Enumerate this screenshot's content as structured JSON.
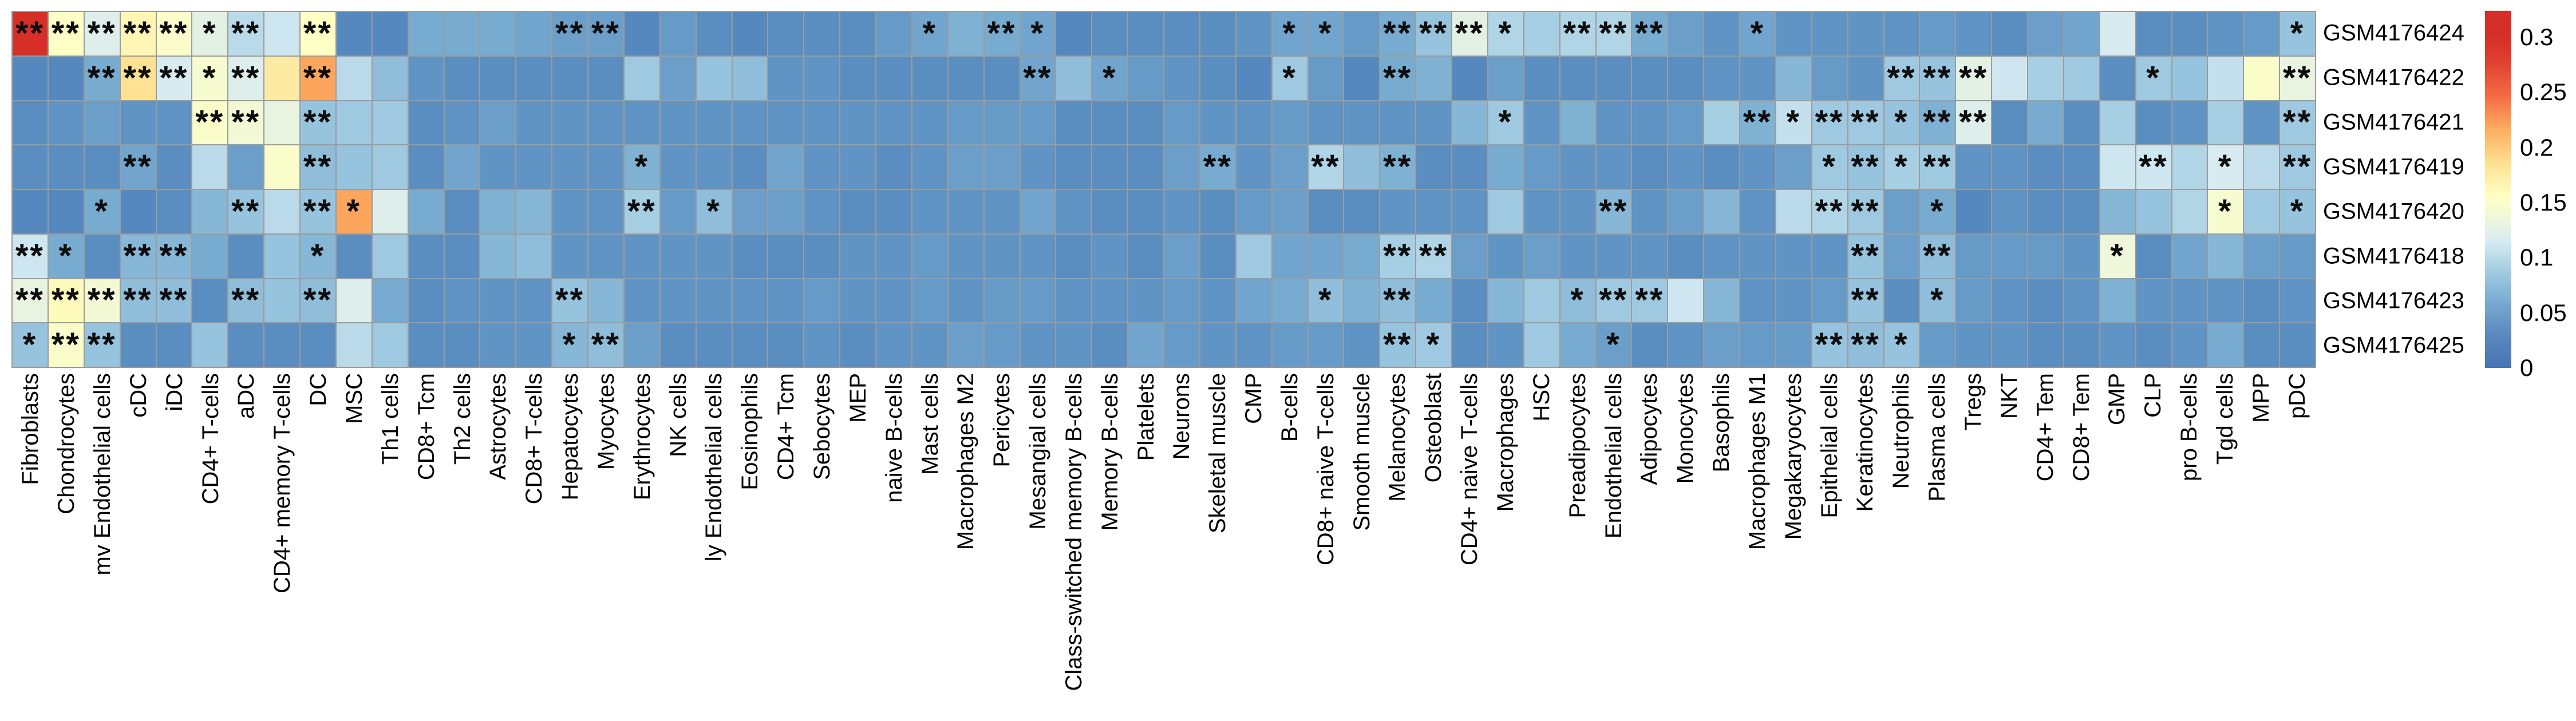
{
  "chart_data": {
    "type": "heatmap",
    "title": "",
    "legend_position": "right",
    "grid_line_color": "#9c9c9c",
    "color_scale": {
      "palette": "RdYlBu_r",
      "min_color": "#4575b4",
      "mid_color": "#ffffbf",
      "max_color": "#d62f27",
      "vmin": 0,
      "vmax": 0.3
    },
    "rows": [
      "GSM4176424",
      "GSM4176422",
      "GSM4176421",
      "GSM4176419",
      "GSM4176420",
      "GSM4176418",
      "GSM4176423",
      "GSM4176425"
    ],
    "columns": [
      "Fibroblasts",
      "Chondrocytes",
      "mv Endothelial cells",
      "cDC",
      "iDC",
      "CD4+ T-cells",
      "aDC",
      "CD4+ memory T-cells",
      "DC",
      "MSC",
      "Th1 cells",
      "CD8+ Tcm",
      "Th2 cells",
      "Astrocytes",
      "CD8+ T-cells",
      "Hepatocytes",
      "Myocytes",
      "Erythrocytes",
      "NK cells",
      "ly Endothelial cells",
      "Eosinophils",
      "CD4+ Tcm",
      "Sebocytes",
      "MEP",
      "naive B-cells",
      "Mast cells",
      "Macrophages M2",
      "Pericytes",
      "Mesangial cells",
      "Class-switched memory B-cells",
      "Memory B-cells",
      "Platelets",
      "Neurons",
      "Skeletal muscle",
      "CMP",
      "B-cells",
      "CD8+ naive T-cells",
      "Smooth muscle",
      "Melanocytes",
      "Osteoblast",
      "CD4+ naive T-cells",
      "Macrophages",
      "HSC",
      "Preadipocytes",
      "Endothelial cells",
      "Adipocytes",
      "Monocytes",
      "Basophils",
      "Macrophages M1",
      "Megakaryocytes",
      "Epithelial cells",
      "Keratinocytes",
      "Neutrophils",
      "Plasma cells",
      "Tregs",
      "NKT",
      "CD4+ Tem",
      "CD8+ Tem",
      "GMP",
      "CLP",
      "pro B-cells",
      "Tgd cells",
      "MPP",
      "pDC"
    ],
    "values": [
      [
        0.325,
        0.155,
        0.12,
        0.165,
        0.15,
        0.125,
        0.1,
        0.11,
        0.155,
        0.03,
        0.03,
        0.06,
        0.06,
        0.06,
        0.055,
        0.05,
        0.05,
        0.03,
        0.045,
        0.035,
        0.03,
        0.035,
        0.035,
        0.035,
        0.045,
        0.055,
        0.065,
        0.06,
        0.055,
        0.03,
        0.035,
        0.035,
        0.035,
        0.035,
        0.04,
        0.055,
        0.055,
        0.045,
        0.06,
        0.08,
        0.125,
        0.095,
        0.09,
        0.095,
        0.095,
        0.06,
        0.05,
        0.04,
        0.055,
        0.04,
        0.04,
        0.04,
        0.04,
        0.045,
        0.04,
        0.035,
        0.05,
        0.055,
        0.115,
        0.035,
        0.035,
        0.04,
        0.045,
        0.08
      ],
      [
        0.03,
        0.03,
        0.06,
        0.185,
        0.115,
        0.145,
        0.12,
        0.175,
        0.22,
        0.1,
        0.075,
        0.04,
        0.035,
        0.035,
        0.035,
        0.035,
        0.035,
        0.085,
        0.05,
        0.08,
        0.075,
        0.04,
        0.04,
        0.035,
        0.035,
        0.035,
        0.035,
        0.035,
        0.055,
        0.075,
        0.055,
        0.045,
        0.04,
        0.035,
        0.03,
        0.085,
        0.045,
        0.03,
        0.06,
        0.065,
        0.03,
        0.05,
        0.035,
        0.035,
        0.035,
        0.035,
        0.035,
        0.04,
        0.04,
        0.07,
        0.045,
        0.04,
        0.085,
        0.08,
        0.125,
        0.11,
        0.09,
        0.085,
        0.035,
        0.085,
        0.08,
        0.105,
        0.15,
        0.13
      ],
      [
        0.035,
        0.04,
        0.05,
        0.04,
        0.04,
        0.15,
        0.14,
        0.13,
        0.08,
        0.085,
        0.085,
        0.035,
        0.04,
        0.05,
        0.04,
        0.04,
        0.04,
        0.04,
        0.04,
        0.04,
        0.04,
        0.04,
        0.04,
        0.04,
        0.04,
        0.04,
        0.045,
        0.045,
        0.045,
        0.035,
        0.035,
        0.035,
        0.045,
        0.04,
        0.04,
        0.045,
        0.04,
        0.04,
        0.04,
        0.04,
        0.07,
        0.085,
        0.04,
        0.065,
        0.04,
        0.04,
        0.045,
        0.09,
        0.065,
        0.105,
        0.085,
        0.085,
        0.08,
        0.065,
        0.12,
        0.035,
        0.06,
        0.035,
        0.09,
        0.035,
        0.04,
        0.09,
        0.04,
        0.085
      ],
      [
        0.035,
        0.035,
        0.035,
        0.055,
        0.035,
        0.1,
        0.05,
        0.15,
        0.075,
        0.08,
        0.085,
        0.035,
        0.055,
        0.04,
        0.04,
        0.04,
        0.04,
        0.065,
        0.04,
        0.04,
        0.035,
        0.055,
        0.04,
        0.04,
        0.035,
        0.04,
        0.05,
        0.05,
        0.04,
        0.035,
        0.035,
        0.035,
        0.05,
        0.06,
        0.04,
        0.05,
        0.095,
        0.075,
        0.065,
        0.035,
        0.035,
        0.06,
        0.045,
        0.04,
        0.04,
        0.035,
        0.04,
        0.035,
        0.04,
        0.05,
        0.085,
        0.08,
        0.09,
        0.085,
        0.04,
        0.04,
        0.035,
        0.035,
        0.11,
        0.11,
        0.095,
        0.115,
        0.1,
        0.085
      ],
      [
        0.03,
        0.03,
        0.06,
        0.03,
        0.035,
        0.07,
        0.08,
        0.1,
        0.08,
        0.22,
        0.12,
        0.06,
        0.035,
        0.065,
        0.07,
        0.04,
        0.04,
        0.09,
        0.045,
        0.075,
        0.05,
        0.05,
        0.04,
        0.035,
        0.035,
        0.04,
        0.04,
        0.04,
        0.055,
        0.04,
        0.035,
        0.035,
        0.04,
        0.035,
        0.045,
        0.05,
        0.035,
        0.035,
        0.04,
        0.04,
        0.04,
        0.085,
        0.04,
        0.04,
        0.07,
        0.04,
        0.05,
        0.07,
        0.04,
        0.1,
        0.095,
        0.085,
        0.05,
        0.06,
        0.03,
        0.04,
        0.035,
        0.035,
        0.07,
        0.08,
        0.095,
        0.145,
        0.085,
        0.08
      ],
      [
        0.11,
        0.06,
        0.035,
        0.07,
        0.07,
        0.06,
        0.035,
        0.08,
        0.07,
        0.035,
        0.085,
        0.035,
        0.035,
        0.07,
        0.075,
        0.04,
        0.04,
        0.04,
        0.04,
        0.04,
        0.035,
        0.035,
        0.035,
        0.04,
        0.04,
        0.045,
        0.04,
        0.04,
        0.04,
        0.035,
        0.04,
        0.035,
        0.05,
        0.035,
        0.085,
        0.055,
        0.055,
        0.06,
        0.09,
        0.095,
        0.05,
        0.04,
        0.05,
        0.04,
        0.04,
        0.04,
        0.035,
        0.04,
        0.04,
        0.04,
        0.04,
        0.08,
        0.05,
        0.075,
        0.045,
        0.045,
        0.045,
        0.04,
        0.135,
        0.035,
        0.055,
        0.07,
        0.05,
        0.045
      ],
      [
        0.13,
        0.16,
        0.14,
        0.075,
        0.075,
        0.035,
        0.075,
        0.08,
        0.075,
        0.12,
        0.06,
        0.035,
        0.04,
        0.04,
        0.04,
        0.08,
        0.07,
        0.04,
        0.04,
        0.04,
        0.04,
        0.04,
        0.045,
        0.04,
        0.04,
        0.045,
        0.04,
        0.045,
        0.045,
        0.04,
        0.04,
        0.04,
        0.045,
        0.04,
        0.055,
        0.06,
        0.075,
        0.065,
        0.075,
        0.06,
        0.035,
        0.07,
        0.085,
        0.075,
        0.085,
        0.085,
        0.11,
        0.07,
        0.04,
        0.04,
        0.045,
        0.08,
        0.035,
        0.075,
        0.045,
        0.04,
        0.035,
        0.04,
        0.065,
        0.04,
        0.04,
        0.04,
        0.035,
        0.04
      ],
      [
        0.08,
        0.15,
        0.08,
        0.035,
        0.035,
        0.08,
        0.035,
        0.035,
        0.035,
        0.1,
        0.085,
        0.035,
        0.035,
        0.04,
        0.04,
        0.07,
        0.075,
        0.05,
        0.035,
        0.035,
        0.035,
        0.035,
        0.04,
        0.035,
        0.04,
        0.04,
        0.05,
        0.045,
        0.04,
        0.04,
        0.035,
        0.055,
        0.045,
        0.04,
        0.04,
        0.045,
        0.045,
        0.04,
        0.08,
        0.085,
        0.035,
        0.04,
        0.085,
        0.06,
        0.05,
        0.035,
        0.04,
        0.05,
        0.045,
        0.045,
        0.08,
        0.075,
        0.08,
        0.045,
        0.04,
        0.04,
        0.035,
        0.035,
        0.04,
        0.035,
        0.04,
        0.06,
        0.035,
        0.035
      ]
    ],
    "significance": [
      [
        2,
        2,
        2,
        2,
        2,
        1,
        2,
        0,
        2,
        0,
        0,
        0,
        0,
        0,
        0,
        2,
        2,
        0,
        0,
        0,
        0,
        0,
        0,
        0,
        0,
        1,
        0,
        2,
        1,
        0,
        0,
        0,
        0,
        0,
        0,
        1,
        1,
        0,
        2,
        2,
        2,
        1,
        0,
        2,
        2,
        2,
        0,
        0,
        1,
        0,
        0,
        0,
        0,
        0,
        0,
        0,
        0,
        0,
        0,
        0,
        0,
        0,
        0,
        1
      ],
      [
        0,
        0,
        2,
        2,
        2,
        1,
        2,
        0,
        2,
        0,
        0,
        0,
        0,
        0,
        0,
        0,
        0,
        0,
        0,
        0,
        0,
        0,
        0,
        0,
        0,
        0,
        0,
        0,
        2,
        0,
        1,
        0,
        0,
        0,
        0,
        1,
        0,
        0,
        2,
        0,
        0,
        0,
        0,
        0,
        0,
        0,
        0,
        0,
        0,
        0,
        0,
        0,
        2,
        2,
        2,
        0,
        0,
        0,
        0,
        1,
        0,
        0,
        0,
        2
      ],
      [
        0,
        0,
        0,
        0,
        0,
        2,
        2,
        0,
        2,
        0,
        0,
        0,
        0,
        0,
        0,
        0,
        0,
        0,
        0,
        0,
        0,
        0,
        0,
        0,
        0,
        0,
        0,
        0,
        0,
        0,
        0,
        0,
        0,
        0,
        0,
        0,
        0,
        0,
        0,
        0,
        0,
        1,
        0,
        0,
        0,
        0,
        0,
        0,
        2,
        1,
        2,
        2,
        1,
        2,
        2,
        0,
        0,
        0,
        0,
        0,
        0,
        0,
        0,
        2
      ],
      [
        0,
        0,
        0,
        2,
        0,
        0,
        0,
        0,
        2,
        0,
        0,
        0,
        0,
        0,
        0,
        0,
        0,
        1,
        0,
        0,
        0,
        0,
        0,
        0,
        0,
        0,
        0,
        0,
        0,
        0,
        0,
        0,
        0,
        2,
        0,
        0,
        2,
        0,
        2,
        0,
        0,
        0,
        0,
        0,
        0,
        0,
        0,
        0,
        0,
        0,
        1,
        2,
        1,
        2,
        0,
        0,
        0,
        0,
        0,
        2,
        0,
        1,
        0,
        2
      ],
      [
        0,
        0,
        1,
        0,
        0,
        0,
        2,
        0,
        2,
        1,
        0,
        0,
        0,
        0,
        0,
        0,
        0,
        2,
        0,
        1,
        0,
        0,
        0,
        0,
        0,
        0,
        0,
        0,
        0,
        0,
        0,
        0,
        0,
        0,
        0,
        0,
        0,
        0,
        0,
        0,
        0,
        0,
        0,
        0,
        2,
        0,
        0,
        0,
        0,
        0,
        2,
        2,
        0,
        1,
        0,
        0,
        0,
        0,
        0,
        0,
        0,
        1,
        0,
        1
      ],
      [
        2,
        1,
        0,
        2,
        2,
        0,
        0,
        0,
        1,
        0,
        0,
        0,
        0,
        0,
        0,
        0,
        0,
        0,
        0,
        0,
        0,
        0,
        0,
        0,
        0,
        0,
        0,
        0,
        0,
        0,
        0,
        0,
        0,
        0,
        0,
        0,
        0,
        0,
        2,
        2,
        0,
        0,
        0,
        0,
        0,
        0,
        0,
        0,
        0,
        0,
        0,
        2,
        0,
        2,
        0,
        0,
        0,
        0,
        1,
        0,
        0,
        0,
        0,
        0
      ],
      [
        2,
        2,
        2,
        2,
        2,
        0,
        2,
        0,
        2,
        0,
        0,
        0,
        0,
        0,
        0,
        2,
        0,
        0,
        0,
        0,
        0,
        0,
        0,
        0,
        0,
        0,
        0,
        0,
        0,
        0,
        0,
        0,
        0,
        0,
        0,
        0,
        1,
        0,
        2,
        0,
        0,
        0,
        0,
        1,
        2,
        2,
        0,
        0,
        0,
        0,
        0,
        2,
        0,
        1,
        0,
        0,
        0,
        0,
        0,
        0,
        0,
        0,
        0,
        0
      ],
      [
        1,
        2,
        2,
        0,
        0,
        0,
        0,
        0,
        0,
        0,
        0,
        0,
        0,
        0,
        0,
        1,
        2,
        0,
        0,
        0,
        0,
        0,
        0,
        0,
        0,
        0,
        0,
        0,
        0,
        0,
        0,
        0,
        0,
        0,
        0,
        0,
        0,
        0,
        2,
        1,
        0,
        0,
        0,
        0,
        1,
        0,
        0,
        0,
        0,
        0,
        2,
        2,
        1,
        0,
        0,
        0,
        0,
        0,
        0,
        0,
        0,
        0,
        0,
        0
      ]
    ],
    "significance_legend": {
      "1": "*",
      "2": "**"
    },
    "colorbar": {
      "ticks": [
        "0.3",
        "0.25",
        "0.2",
        "0.15",
        "0.1",
        "0.05",
        "0"
      ],
      "orientation": "vertical"
    }
  }
}
